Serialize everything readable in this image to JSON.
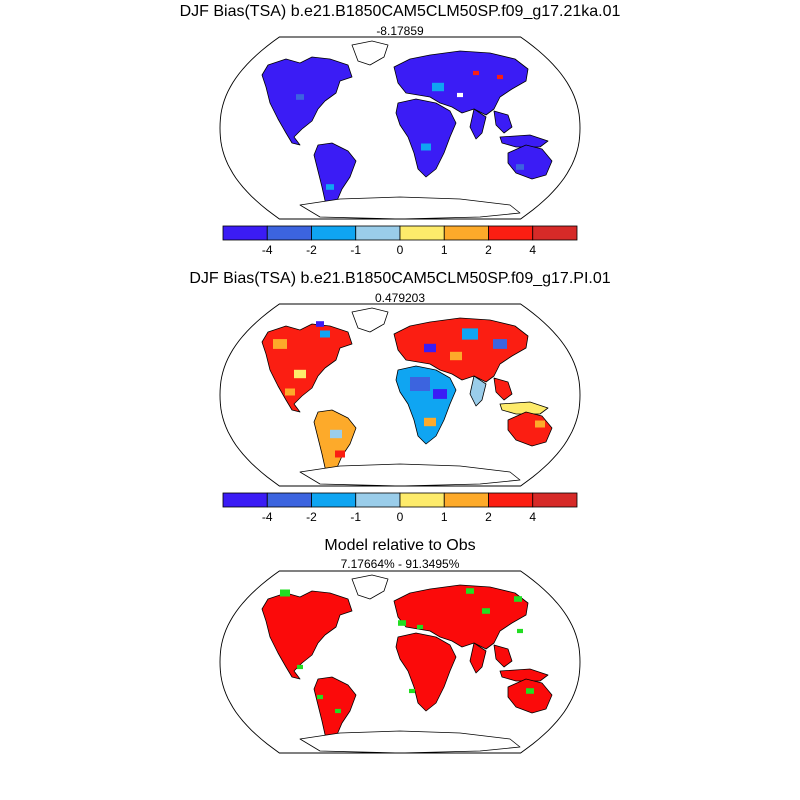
{
  "panels": [
    {
      "title": "DJF Bias(TSA) b.e21.B1850CAM5CLM50SP.f09_g17.21ka.01",
      "subtitle": "-8.17859",
      "palette": "cold",
      "has_colorbar": true
    },
    {
      "title": "DJF Bias(TSA) b.e21.B1850CAM5CLM50SP.f09_g17.PI.01",
      "subtitle": "0.479203",
      "palette": "mixed",
      "has_colorbar": true
    },
    {
      "title": "Model relative to Obs",
      "subtitle": "7.17664% - 91.3495%",
      "palette": "redgreen",
      "has_colorbar": false
    }
  ],
  "colorbar": {
    "colors": [
      "#3b1cf5",
      "#3c64df",
      "#0fa5f2",
      "#9acdea",
      "#fdeb6b",
      "#fdaa2a",
      "#fb1e12",
      "#d62a28"
    ],
    "labels": [
      "-4",
      "-2",
      "-1",
      "0",
      "1",
      "2",
      "4"
    ]
  },
  "colors": {
    "ocean": "#ffffff",
    "outline": "#000000",
    "relative_red": "#fb0a0a",
    "relative_green": "#22dd22"
  }
}
